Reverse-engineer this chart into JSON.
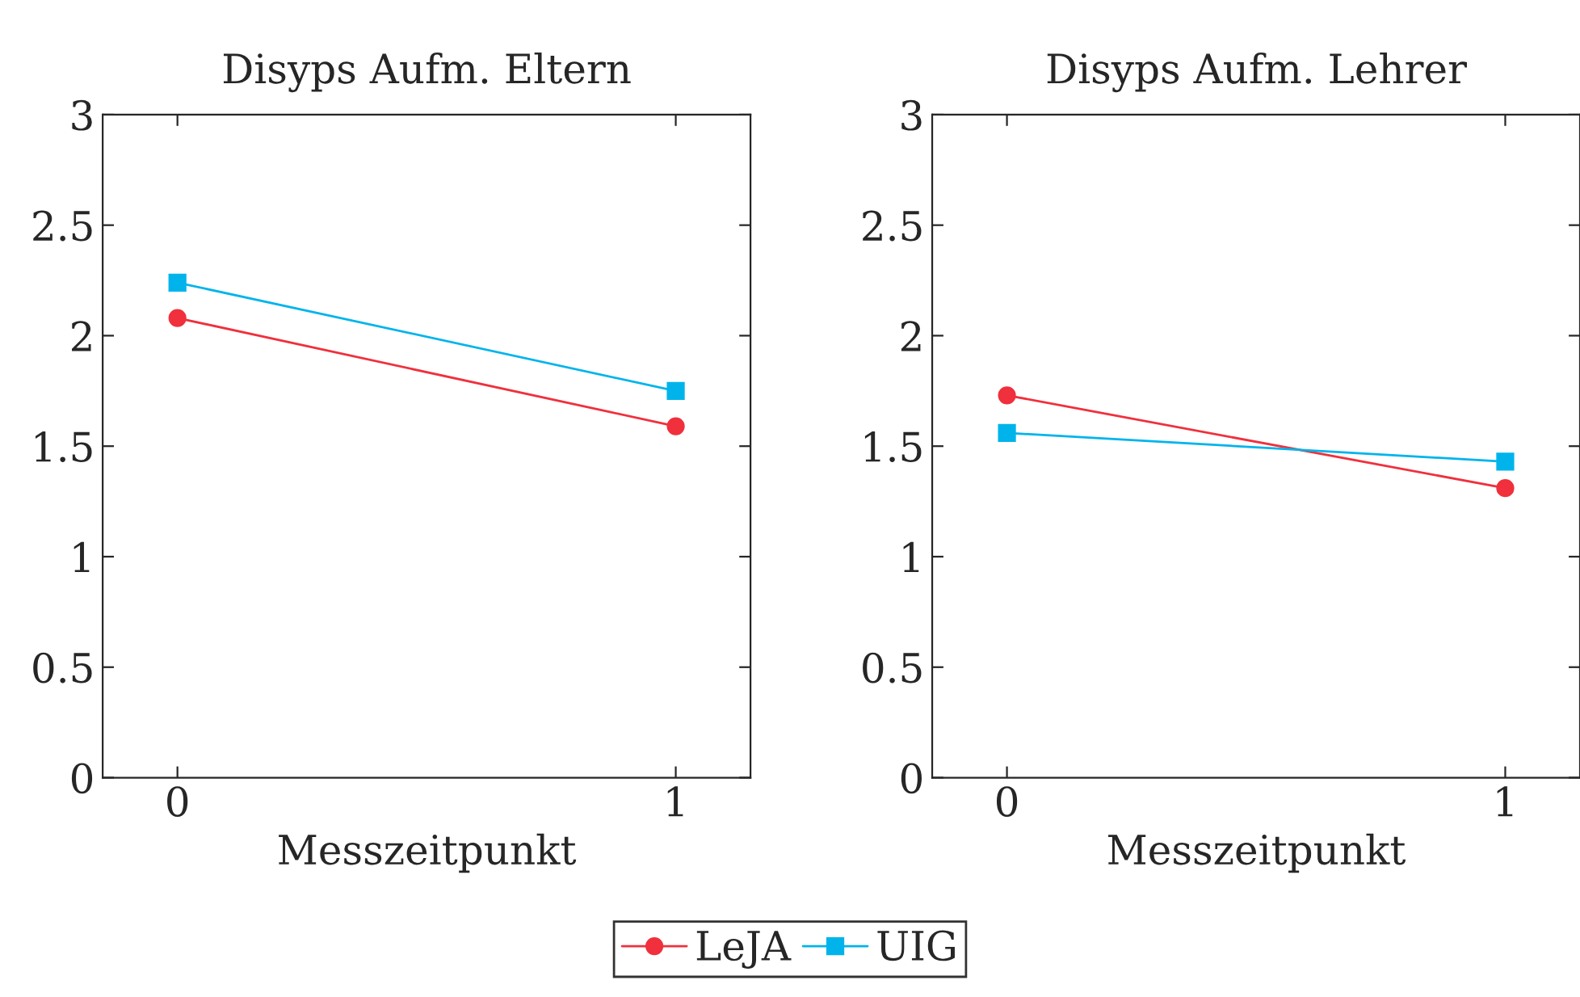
{
  "chart_data": [
    {
      "type": "line",
      "title": "Disyps Aufm. Eltern",
      "xlabel": "Messzeitpunkt",
      "categories": [
        "0",
        "1"
      ],
      "ylim": [
        0,
        3
      ],
      "yticks": [
        0,
        0.5,
        1,
        1.5,
        2,
        2.5,
        3
      ],
      "legend": "bottom",
      "series": [
        {
          "name": "LeJA",
          "color": "#f0303c",
          "marker": "circle",
          "values": [
            2.08,
            1.59
          ]
        },
        {
          "name": "UIG",
          "color": "#00b4eb",
          "marker": "square",
          "values": [
            2.24,
            1.75
          ]
        }
      ]
    },
    {
      "type": "line",
      "title": "Disyps Aufm. Lehrer",
      "xlabel": "Messzeitpunkt",
      "categories": [
        "0",
        "1"
      ],
      "ylim": [
        0,
        3
      ],
      "yticks": [
        0,
        0.5,
        1,
        1.5,
        2,
        2.5,
        3
      ],
      "series": [
        {
          "name": "LeJA",
          "color": "#f0303c",
          "marker": "circle",
          "values": [
            1.73,
            1.31
          ]
        },
        {
          "name": "UIG",
          "color": "#00b4eb",
          "marker": "square",
          "values": [
            1.56,
            1.43
          ]
        }
      ]
    }
  ]
}
